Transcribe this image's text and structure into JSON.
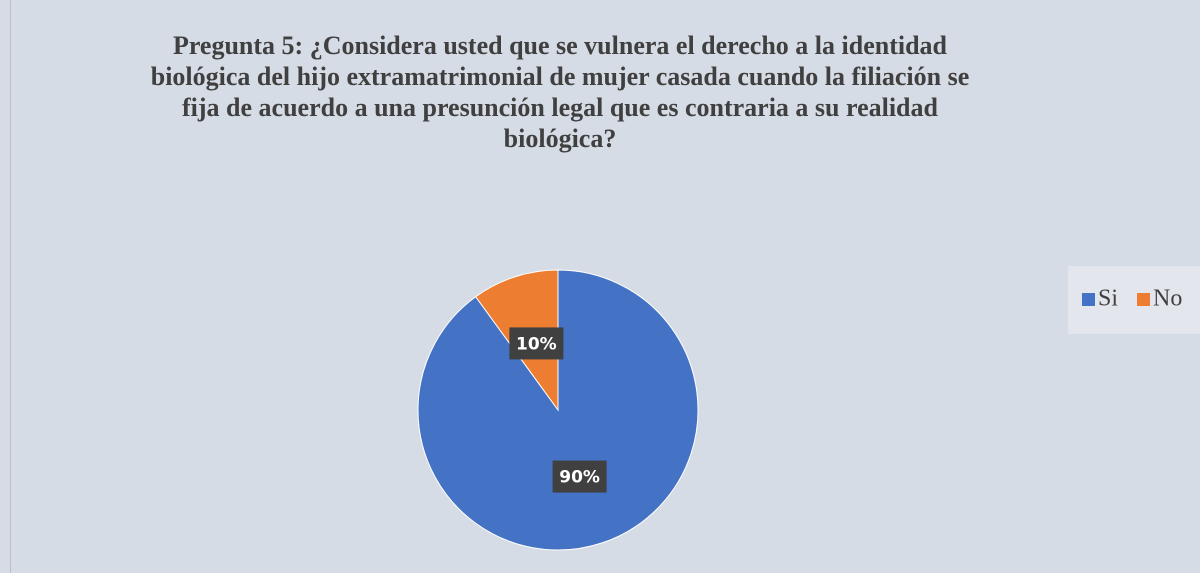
{
  "chart_data": {
    "type": "pie",
    "title": "Pregunta 5: ¿Considera usted que se vulnera el derecho a la identidad biológica del hijo extramatrimonial de mujer casada cuando la filiación se fija de acuerdo a una presunción legal que es contraria a su realidad biológica?",
    "categories": [
      "Si",
      "No"
    ],
    "values": [
      90,
      10
    ],
    "value_labels": [
      "90%",
      "10%"
    ],
    "colors": [
      "#4472c4",
      "#ed7d31"
    ],
    "legend": "right"
  }
}
